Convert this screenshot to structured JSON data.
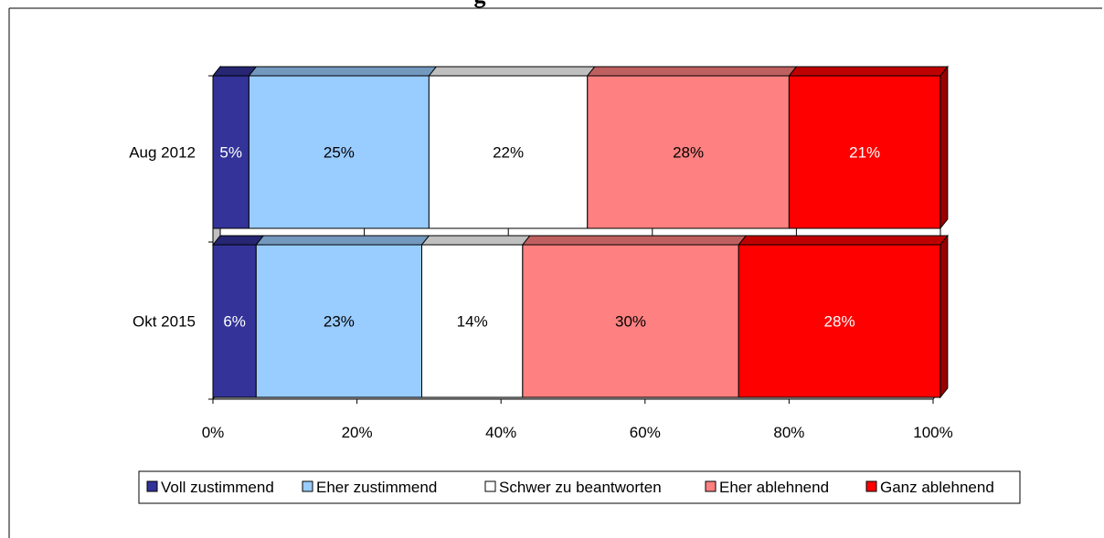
{
  "chart_data": {
    "type": "bar",
    "orientation": "horizontal",
    "stacked": true,
    "percent_scale": true,
    "three_d": true,
    "title_fragment": "g",
    "categories": [
      "Aug 2012",
      "Okt 2015"
    ],
    "series": [
      {
        "name": "Voll zustimmend",
        "color": "#333399",
        "label_color": "#ffffff",
        "values": [
          5,
          6
        ]
      },
      {
        "name": "Eher zustimmend",
        "color": "#99ccff",
        "label_color": "#000000",
        "values": [
          25,
          23
        ]
      },
      {
        "name": "Schwer zu beantworten",
        "color": "#ffffff",
        "label_color": "#000000",
        "values": [
          22,
          14
        ]
      },
      {
        "name": "Eher ablehnend",
        "color": "#ff8080",
        "label_color": "#000000",
        "values": [
          28,
          30
        ]
      },
      {
        "name": "Ganz ablehnend",
        "color": "#ff0000",
        "label_color": "#ffffff",
        "values": [
          21,
          28
        ]
      }
    ],
    "data_labels": [
      [
        "5%",
        "25%",
        "22%",
        "28%",
        "21%"
      ],
      [
        "6%",
        "23%",
        "14%",
        "30%",
        "28%"
      ]
    ],
    "x_ticks": [
      "0%",
      "20%",
      "40%",
      "60%",
      "80%",
      "100%"
    ],
    "xlim": [
      0,
      100
    ],
    "grid": true,
    "legend_position": "bottom"
  }
}
